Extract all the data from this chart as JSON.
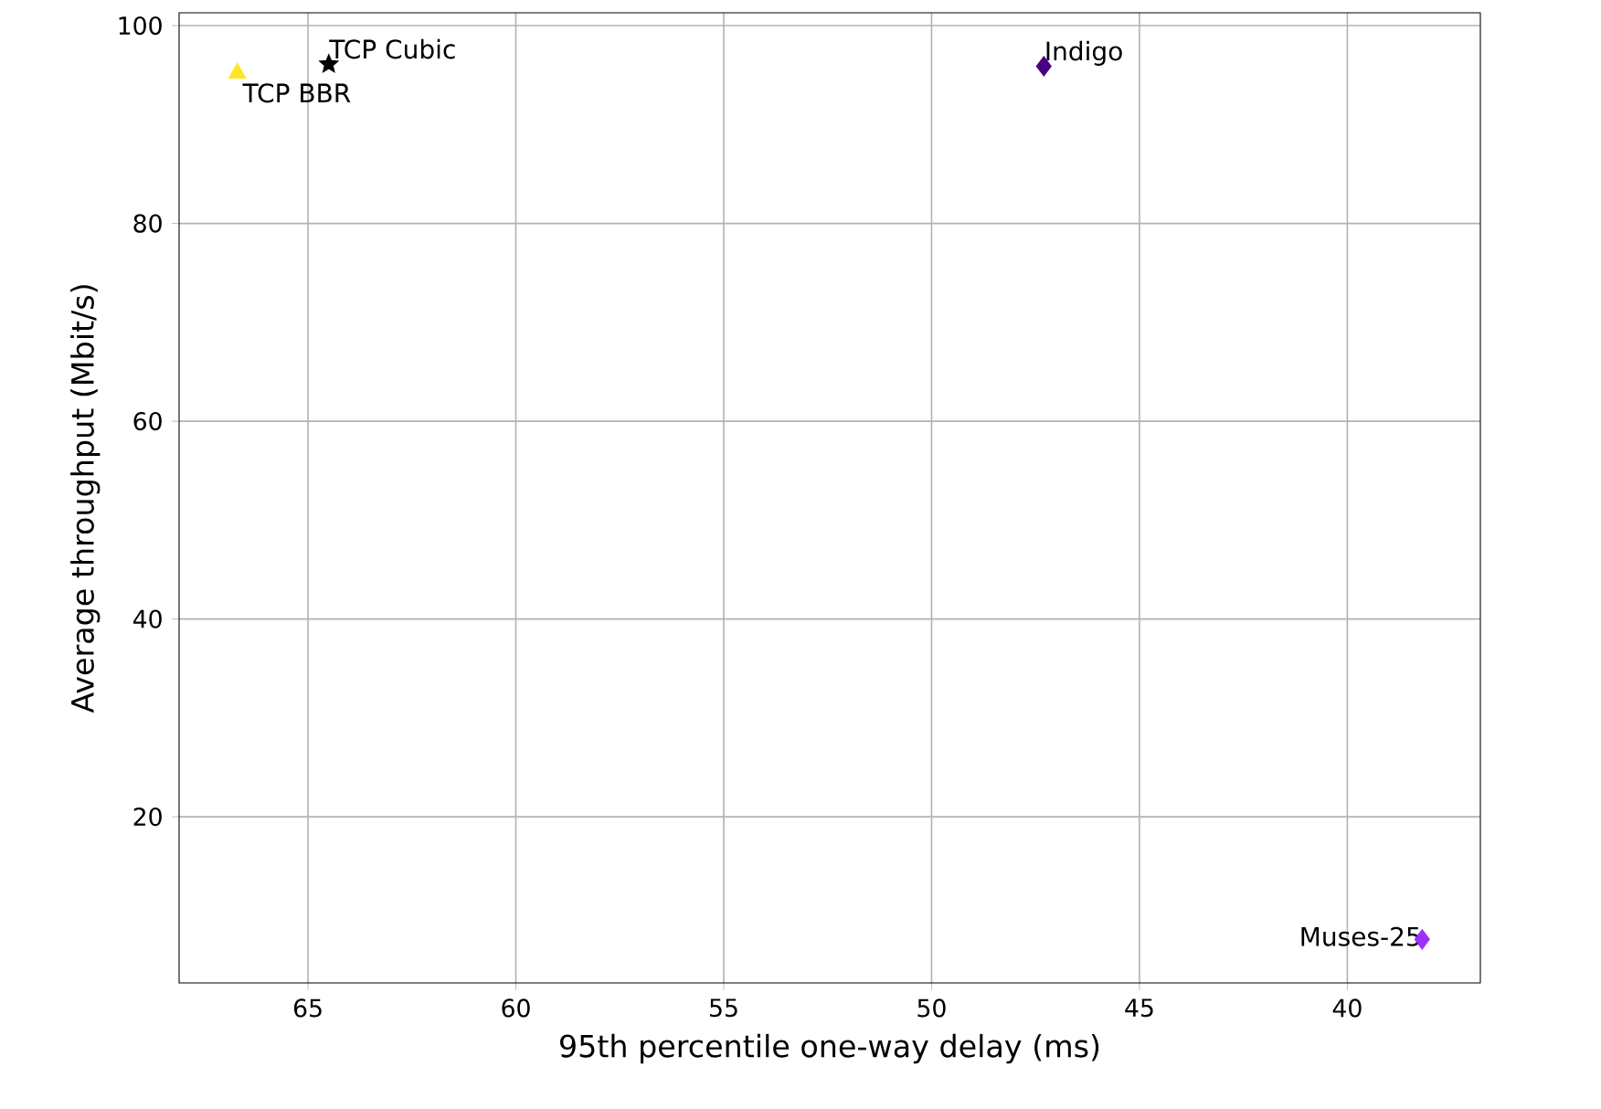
{
  "chart_data": {
    "type": "scatter",
    "xlabel": "95th percentile one-way delay (ms)",
    "ylabel": "Average throughput (Mbit/s)",
    "xlim": [
      68.1,
      36.8
    ],
    "xticks": [
      65,
      60,
      55,
      50,
      45,
      40
    ],
    "ylim": [
      3.2,
      101.3
    ],
    "yticks": [
      20,
      40,
      60,
      80,
      100
    ],
    "grid": true,
    "series": [
      {
        "name": "TCP BBR",
        "color": "#fde725",
        "marker": "triangle",
        "x": [
          66.7
        ],
        "values": [
          95.2
        ]
      },
      {
        "name": "TCP Cubic",
        "color": "#000000",
        "marker": "star",
        "x": [
          64.5
        ],
        "values": [
          96.1
        ]
      },
      {
        "name": "Indigo",
        "color": "#4b0082",
        "marker": "diamond",
        "x": [
          47.3
        ],
        "values": [
          95.9
        ]
      },
      {
        "name": "Muses-25",
        "color": "#9b30ff",
        "marker": "diamond",
        "x": [
          38.2
        ],
        "values": [
          7.6
        ]
      }
    ]
  }
}
